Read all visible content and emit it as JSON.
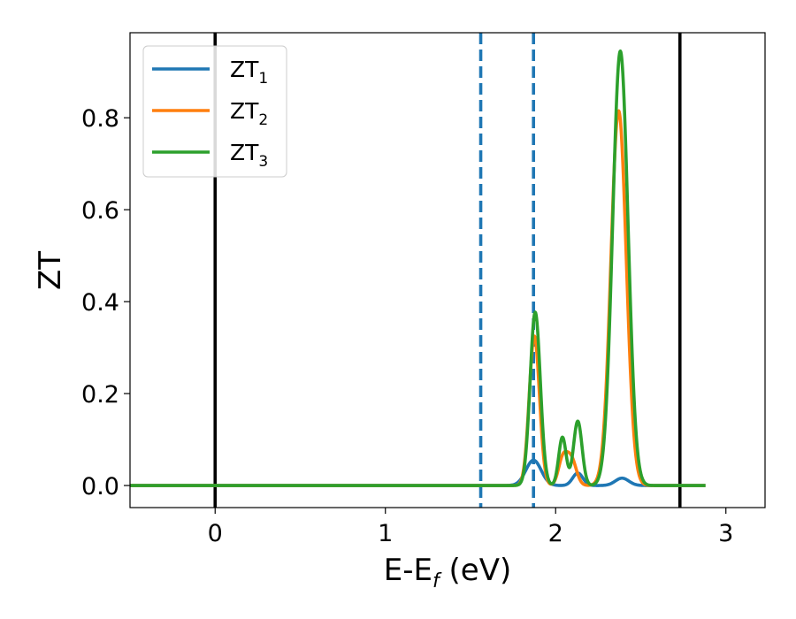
{
  "chart_data": {
    "type": "line",
    "xlabel": {
      "base": "E-E",
      "subscript": "f",
      "suffix": " (eV)"
    },
    "ylabel": "ZT",
    "xlim": [
      -0.5,
      3.23
    ],
    "ylim": [
      -0.048,
      0.985
    ],
    "x_ticks": [
      0,
      1,
      2,
      3
    ],
    "x_tick_labels": [
      "0",
      "1",
      "2",
      "3"
    ],
    "y_ticks": [
      0.0,
      0.2,
      0.4,
      0.6,
      0.8
    ],
    "y_tick_labels": [
      "0.0",
      "0.2",
      "0.4",
      "0.6",
      "0.8"
    ],
    "grid": false,
    "legend_position": "top-left",
    "x_range": [
      -0.5,
      2.88
    ],
    "series": [
      {
        "name": "ZT",
        "name_subscript": "1",
        "color": "#1f77b4",
        "peaks": [
          {
            "center": 1.87,
            "height": 0.055,
            "width": 0.045
          },
          {
            "center": 2.13,
            "height": 0.027,
            "width": 0.03
          },
          {
            "center": 2.39,
            "height": 0.016,
            "width": 0.04
          }
        ]
      },
      {
        "name": "ZT",
        "name_subscript": "2",
        "color": "#ff7f0e",
        "peaks": [
          {
            "center": 1.875,
            "height": 0.325,
            "width": 0.03
          },
          {
            "center": 2.04,
            "height": 0.052,
            "width": 0.025
          },
          {
            "center": 2.09,
            "height": 0.06,
            "width": 0.03
          },
          {
            "center": 2.37,
            "height": 0.815,
            "width": 0.045
          }
        ]
      },
      {
        "name": "ZT",
        "name_subscript": "3",
        "color": "#2ca02c",
        "peaks": [
          {
            "center": 1.88,
            "height": 0.377,
            "width": 0.03
          },
          {
            "center": 2.04,
            "height": 0.105,
            "width": 0.022
          },
          {
            "center": 2.13,
            "height": 0.14,
            "width": 0.025
          },
          {
            "center": 2.38,
            "height": 0.945,
            "width": 0.045
          }
        ]
      }
    ],
    "vertical_lines": [
      {
        "x": 0.0,
        "style": "solid",
        "color": "#000000"
      },
      {
        "x": 2.73,
        "style": "solid",
        "color": "#000000"
      },
      {
        "x": 1.56,
        "style": "dashed",
        "color": "#1f77b4"
      },
      {
        "x": 1.87,
        "style": "dashed",
        "color": "#1f77b4"
      }
    ]
  }
}
